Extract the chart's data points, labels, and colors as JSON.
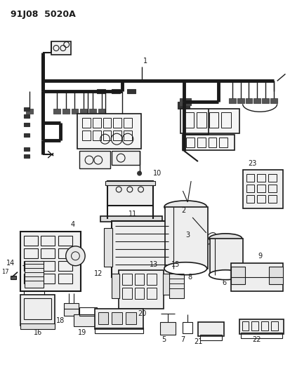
{
  "title_line1": "91J08  5020A",
  "bg_color": "#ffffff",
  "line_color": "#1a1a1a",
  "fig_width": 4.14,
  "fig_height": 5.33,
  "dpi": 100
}
